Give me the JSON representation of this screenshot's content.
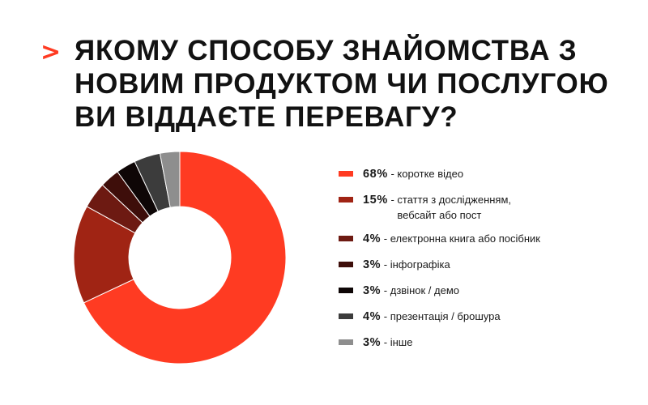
{
  "title": "ЯКОМУ СПОСОБУ ЗНАЙОМСТВА З НОВИМ ПРОДУКТОМ ЧИ ПОСЛУГОЮ ВИ ВІДДАЄТЕ ПЕРЕВАГУ?",
  "header_marker": ">",
  "chart_data": {
    "type": "pie",
    "title": "ЯКОМУ СПОСОБУ ЗНАЙОМСТВА З НОВИМ ПРОДУКТОМ ЧИ ПОСЛУГОЮ ВИ ВІДДАЄТЕ ПЕРЕВАГУ?",
    "donut": true,
    "legend_placement": "right",
    "slices": [
      {
        "label": "коротке відео",
        "value": 68,
        "value_label": "68%",
        "color": "#ff3b22"
      },
      {
        "label": "стаття з дослідженням,\nвебсайт або пост",
        "value": 15,
        "value_label": "15%",
        "color": "#a02414"
      },
      {
        "label": "електронна книга або посібник",
        "value": 4,
        "value_label": "4%",
        "color": "#6d1a12"
      },
      {
        "label": "інфографіка",
        "value": 3,
        "value_label": "3%",
        "color": "#3e0e0a"
      },
      {
        "label": "дзвінок / демо",
        "value": 3,
        "value_label": "3%",
        "color": "#0e0606"
      },
      {
        "label": "презентація / брошура",
        "value": 4,
        "value_label": "4%",
        "color": "#3c3c3c"
      },
      {
        "label": "інше",
        "value": 3,
        "value_label": "3%",
        "color": "#8e8e8e"
      }
    ]
  }
}
